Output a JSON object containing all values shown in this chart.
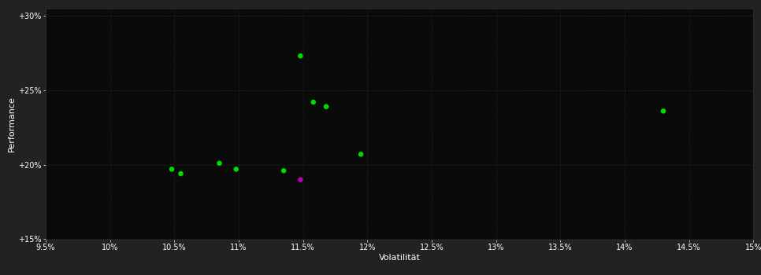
{
  "background_color": "#222222",
  "plot_bg_color": "#0a0a0a",
  "grid_color": "#2a2a2a",
  "text_color": "#ffffff",
  "xlabel": "Volatilität",
  "ylabel": "Performance",
  "xlim": [
    0.095,
    0.15
  ],
  "ylim": [
    0.15,
    0.305
  ],
  "xticks": [
    0.095,
    0.1,
    0.105,
    0.11,
    0.115,
    0.12,
    0.125,
    0.13,
    0.135,
    0.14,
    0.145,
    0.15
  ],
  "yticks": [
    0.15,
    0.2,
    0.25,
    0.3
  ],
  "green_points": [
    [
      0.1048,
      0.197
    ],
    [
      0.1055,
      0.194
    ],
    [
      0.1085,
      0.201
    ],
    [
      0.1098,
      0.197
    ],
    [
      0.1135,
      0.196
    ],
    [
      0.1148,
      0.273
    ],
    [
      0.1158,
      0.242
    ],
    [
      0.1168,
      0.239
    ],
    [
      0.1195,
      0.207
    ],
    [
      0.143,
      0.236
    ]
  ],
  "magenta_points": [
    [
      0.1148,
      0.19
    ]
  ],
  "green_color": "#00dd00",
  "magenta_color": "#bb00bb",
  "marker_size": 22
}
